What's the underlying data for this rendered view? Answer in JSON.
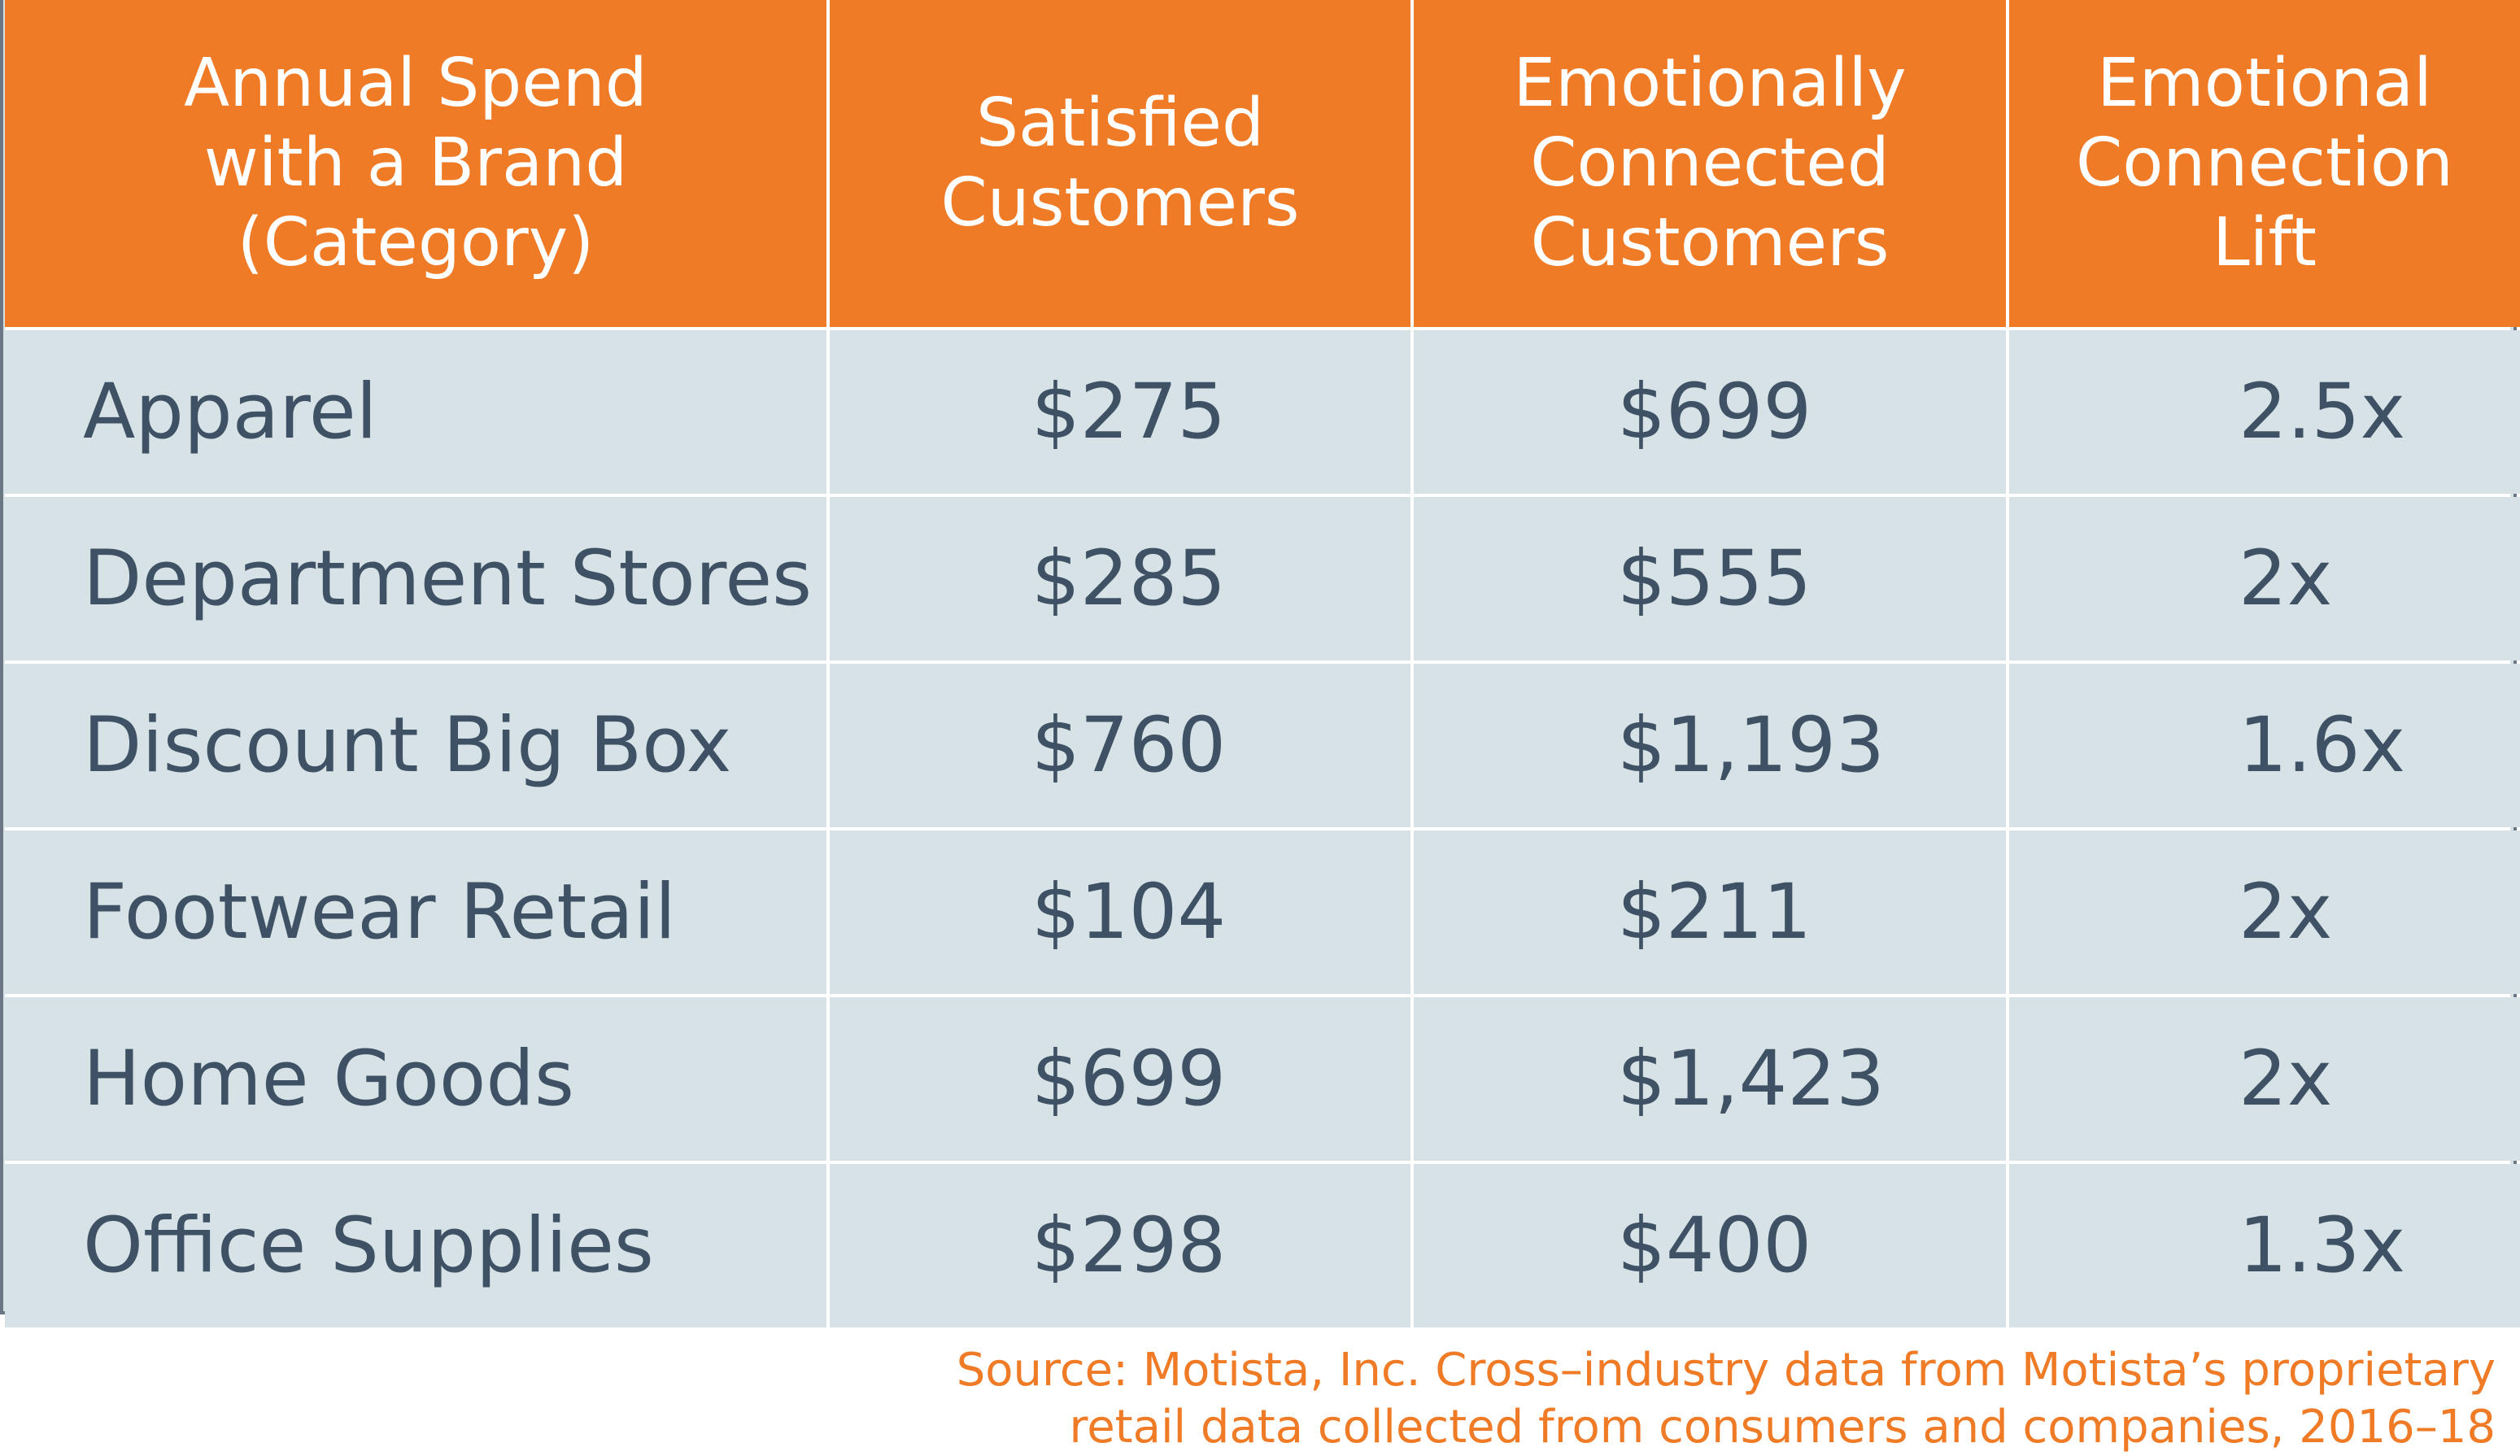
{
  "chart_data": {
    "type": "table",
    "columns": [
      "Annual Spend\nwith a Brand (Category)",
      "Satisfied\nCustomers",
      "Emotionally\nConnected\nCustomers",
      "Emotional\nConnection\nLift"
    ],
    "rows": [
      {
        "category": "Apparel",
        "satisfied": "$275",
        "emotionally_connected": "$699",
        "lift": "2.5x"
      },
      {
        "category": "Department Stores",
        "satisfied": "$285",
        "emotionally_connected": "$555",
        "lift": "2x"
      },
      {
        "category": "Discount Big Box",
        "satisfied": "$760",
        "emotionally_connected": "$1,193",
        "lift": "1.6x"
      },
      {
        "category": "Footwear Retail",
        "satisfied": "$104",
        "emotionally_connected": "$211",
        "lift": "2x"
      },
      {
        "category": "Home Goods",
        "satisfied": "$699",
        "emotionally_connected": "$1,423",
        "lift": "2x"
      },
      {
        "category": "Office Supplies",
        "satisfied": "$298",
        "emotionally_connected": "$400",
        "lift": "1.3x"
      }
    ]
  },
  "source": {
    "line1": "Source: Motista, Inc. Cross–industry data from Motista’s proprietary",
    "line2": "retail data collected from consumers and companies, 2016–18"
  },
  "colors": {
    "header_bg": "#ef7b27",
    "header_text": "#ffffff",
    "body_bg": "#d6e2e5",
    "body_text": "#3f5265",
    "source_text": "#ef7b27"
  }
}
